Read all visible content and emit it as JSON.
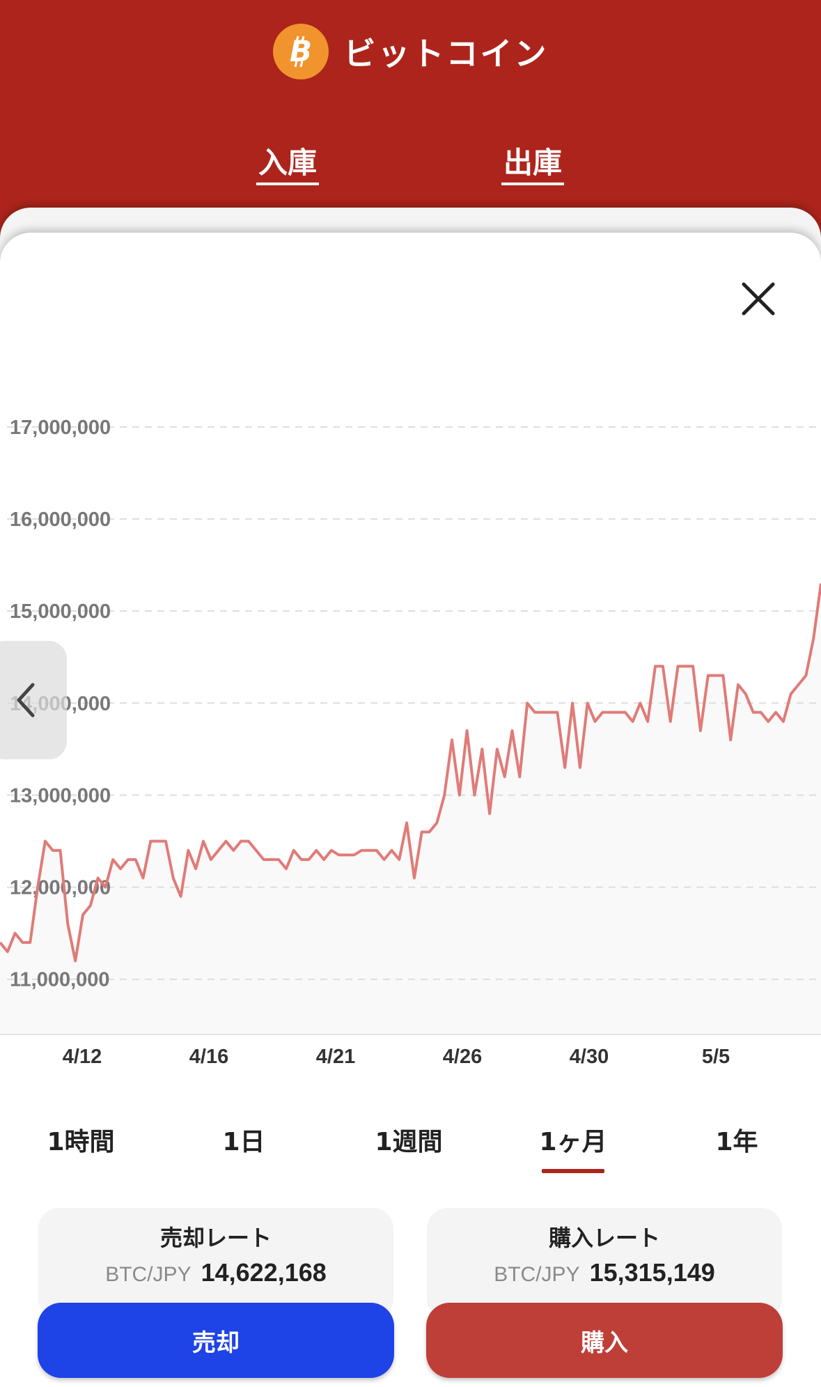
{
  "header": {
    "title": "ビットコイン",
    "logo_icon": "bitcoin-icon",
    "tabs": [
      {
        "label": "入庫"
      },
      {
        "label": "出庫"
      }
    ],
    "background_color": "#ac241b"
  },
  "chart_data": {
    "type": "area",
    "title": "",
    "xlabel": "",
    "ylabel": "",
    "ylim": [
      10400000,
      17400000
    ],
    "y_ticks": [
      "17,000,000",
      "16,000,000",
      "15,000,000",
      "14,000,000",
      "13,000,000",
      "12,000,000",
      "11,000,000"
    ],
    "x_ticks": [
      "4/12",
      "4/16",
      "4/21",
      "4/26",
      "4/30",
      "5/5"
    ],
    "grid": true,
    "line_color": "#e07b77",
    "fill_color": "#f9f9f9",
    "series": [
      {
        "values": [
          11400000,
          11300000,
          11500000,
          11400000,
          11400000,
          12000000,
          12500000,
          12400000,
          12400000,
          11600000,
          11200000,
          11700000,
          11800000,
          12100000,
          12000000,
          12300000,
          12200000,
          12300000,
          12300000,
          12100000,
          12500000,
          12500000,
          12500000,
          12100000,
          11900000,
          12400000,
          12200000,
          12500000,
          12300000,
          12400000,
          12500000,
          12400000,
          12500000,
          12500000,
          12400000,
          12300000,
          12300000,
          12300000,
          12200000,
          12400000,
          12300000,
          12300000,
          12400000,
          12300000,
          12400000,
          12350000,
          12350000,
          12350000,
          12400000,
          12400000,
          12400000,
          12300000,
          12400000,
          12300000,
          12700000,
          12100000,
          12600000,
          12600000,
          12700000,
          13000000,
          13600000,
          13000000,
          13700000,
          13000000,
          13500000,
          12800000,
          13500000,
          13200000,
          13700000,
          13200000,
          14000000,
          13900000,
          13900000,
          13900000,
          13900000,
          13300000,
          14000000,
          13300000,
          14000000,
          13800000,
          13900000,
          13900000,
          13900000,
          13900000,
          13800000,
          14000000,
          13800000,
          14400000,
          14400000,
          13800000,
          14400000,
          14400000,
          14400000,
          13700000,
          14300000,
          14300000,
          14300000,
          13600000,
          14200000,
          14100000,
          13900000,
          13900000,
          13800000,
          13900000,
          13800000,
          14100000,
          14200000,
          14300000,
          14700000,
          15300000
        ]
      }
    ]
  },
  "period_tabs": {
    "items": [
      "1時間",
      "1日",
      "1週間",
      "1ヶ月",
      "1年"
    ],
    "active_index": 3,
    "active_color": "#ac241b"
  },
  "sell": {
    "label": "売却レート",
    "pair": "BTC/JPY",
    "value": "14,622,168",
    "button": "売却",
    "color": "#1e43e6"
  },
  "buy": {
    "label": "購入レート",
    "pair": "BTC/JPY",
    "value": "15,315,149",
    "button": "購入",
    "color": "#be3f38"
  }
}
